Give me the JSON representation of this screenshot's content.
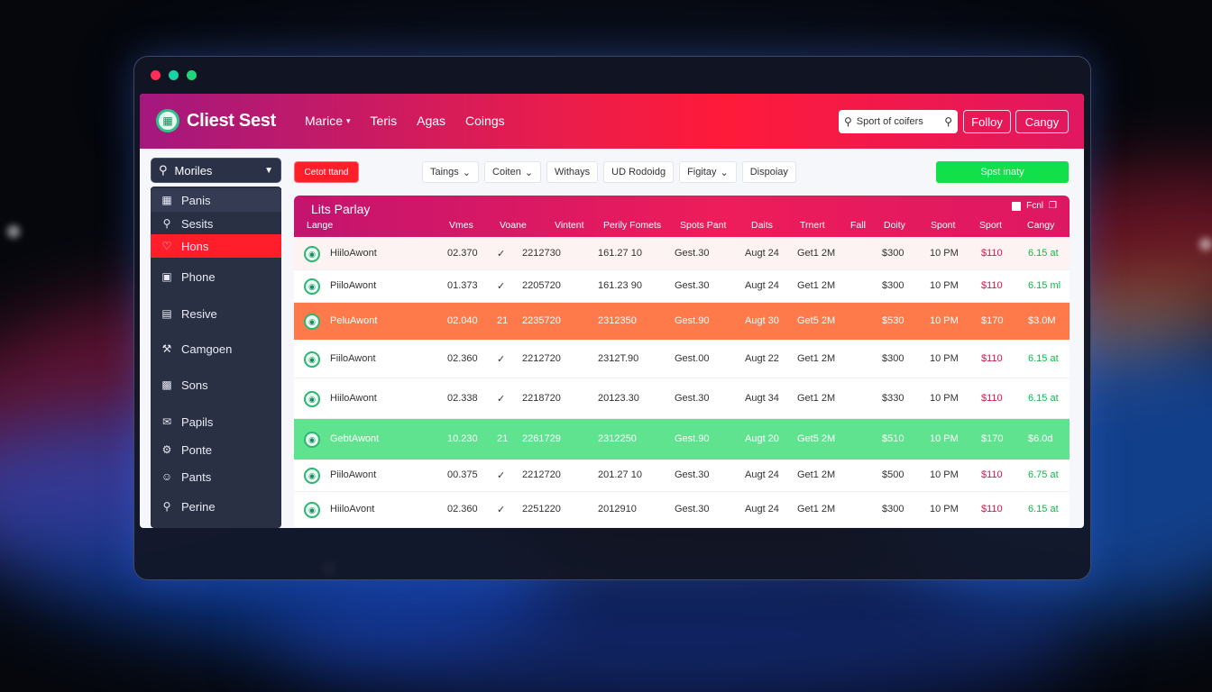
{
  "app": {
    "title": "Cliest Sest"
  },
  "nav": [
    {
      "label": "Marice",
      "has_menu": true
    },
    {
      "label": "Teris",
      "has_menu": false
    },
    {
      "label": "Agas",
      "has_menu": false
    },
    {
      "label": "Coings",
      "has_menu": false
    }
  ],
  "search": {
    "placeholder": "Sport of coifers"
  },
  "header_buttons": {
    "follow": "Folloy",
    "cangy": "Cangy"
  },
  "sidebar": {
    "select_label": "Moriles",
    "items": [
      {
        "label": "Panis",
        "icon": "building-icon"
      },
      {
        "label": "Sesits",
        "icon": "search-icon"
      },
      {
        "label": "Hons",
        "icon": "heart-icon"
      },
      {
        "label": "Phone",
        "icon": "window-icon"
      },
      {
        "label": "Resive",
        "icon": "list-icon"
      },
      {
        "label": "Camgoen",
        "icon": "wrench-icon"
      },
      {
        "label": "Sons",
        "icon": "grid-icon"
      },
      {
        "label": "Papils",
        "icon": "mail-icon"
      },
      {
        "label": "Ponte",
        "icon": "gear-icon"
      },
      {
        "label": "Pants",
        "icon": "person-icon"
      },
      {
        "label": "Perine",
        "icon": "key-icon"
      }
    ]
  },
  "toolbar": {
    "red_pill": "Cetot ttand",
    "filters": [
      {
        "label": "Taings",
        "has_menu": true
      },
      {
        "label": "Coiten",
        "has_menu": true
      },
      {
        "label": "Withays",
        "has_menu": false
      },
      {
        "label": "UD Rodoidg",
        "has_menu": false
      },
      {
        "label": "Figitay",
        "has_menu": true
      },
      {
        "label": "Dispoiay",
        "has_menu": false
      }
    ],
    "green_button": "Spst inaty"
  },
  "table": {
    "title": "Lits Parlay",
    "actions": {
      "export": "Fcnl"
    },
    "columns": [
      "Lange",
      "Vmes",
      "Voane",
      "Vintent",
      "Perily Fomets",
      "Spots Pant",
      "Daits",
      "Trnert",
      "Fall",
      "Doity",
      "Spont",
      "Sport",
      "Cangy"
    ],
    "rows": [
      {
        "name": "HiiloAwont",
        "a": "02.370",
        "b": "✓",
        "c": "2212730",
        "d": "161.27 10",
        "e": "Gest.30",
        "f": "Augt 24",
        "g": "Get1 2M",
        "h": "$300",
        "i": "10 PM",
        "j": "$110",
        "k": "6.15 at",
        "style": "tint"
      },
      {
        "name": "PiiloAwont",
        "a": "01.373",
        "b": "✓",
        "c": "2205720",
        "d": "161.23 90",
        "e": "Gest.30",
        "f": "Augt 24",
        "g": "Get1 2M",
        "h": "$300",
        "i": "10 PM",
        "j": "$110",
        "k": "6.15 ml",
        "style": "plain"
      },
      {
        "name": "PeluAwont",
        "a": "02.040",
        "b": "21",
        "c": "2235720",
        "d": "2312350",
        "e": "Gest.90",
        "f": "Augt 30",
        "g": "Get5 2M",
        "h": "$530",
        "i": "10 PM",
        "j": "$170",
        "k": "$3.0M",
        "style": "orange"
      },
      {
        "name": "FiiloAwont",
        "a": "02.360",
        "b": "✓",
        "c": "2212720",
        "d": "2312T.90",
        "e": "Gest.00",
        "f": "Augt 22",
        "g": "Get1 2M",
        "h": "$300",
        "i": "10 PM",
        "j": "$110",
        "k": "6.15 at",
        "style": "plain"
      },
      {
        "name": "HiiloAwont",
        "a": "02.338",
        "b": "✓",
        "c": "2218720",
        "d": "20123.30",
        "e": "Gest.30",
        "f": "Augt 34",
        "g": "Get1 2M",
        "h": "$330",
        "i": "10 PM",
        "j": "$110",
        "k": "6.15 at",
        "style": "plain"
      },
      {
        "name": "GebtAwont",
        "a": "10.230",
        "b": "21",
        "c": "2261729",
        "d": "2312250",
        "e": "Gest.90",
        "f": "Augt 20",
        "g": "Get5 2M",
        "h": "$510",
        "i": "10 PM",
        "j": "$170",
        "k": "$6.0d",
        "style": "green"
      },
      {
        "name": "PiiloAwont",
        "a": "00.375",
        "b": "✓",
        "c": "2212720",
        "d": "201.27 10",
        "e": "Gest.30",
        "f": "Augt 24",
        "g": "Get1 2M",
        "h": "$500",
        "i": "10 PM",
        "j": "$110",
        "k": "6.75 at",
        "style": "plain"
      },
      {
        "name": "HiiloAvont",
        "a": "02.360",
        "b": "✓",
        "c": "2251220",
        "d": "2012910",
        "e": "Gest.30",
        "f": "Augt 24",
        "g": "Get1 2M",
        "h": "$300",
        "i": "10 PM",
        "j": "$110",
        "k": "6.15 at",
        "style": "plain"
      }
    ]
  }
}
